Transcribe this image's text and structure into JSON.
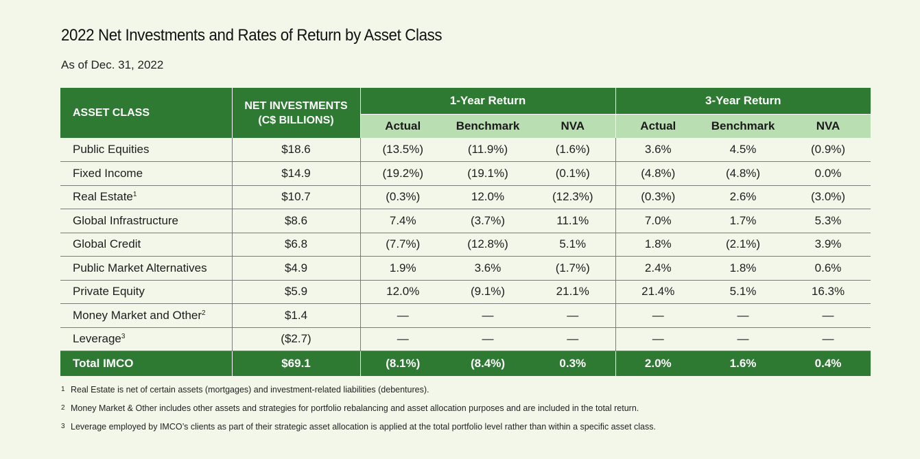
{
  "title": "2022 Net Investments and Rates of Return by Asset Class",
  "subtitle": "As of Dec. 31, 2022",
  "table": {
    "headers": {
      "asset_class": "ASSET CLASS",
      "net_investments_line1": "NET INVESTMENTS",
      "net_investments_line2": "(C$ BILLIONS)",
      "group_1yr": "1-Year Return",
      "group_3yr": "3-Year Return",
      "actual": "Actual",
      "benchmark": "Benchmark",
      "nva": "NVA"
    },
    "rows": [
      {
        "asset": "Public Equities",
        "sup": "",
        "net": "$18.6",
        "a1": "(13.5%)",
        "b1": "(11.9%)",
        "n1": "(1.6%)",
        "a3": "3.6%",
        "b3": "4.5%",
        "n3": "(0.9%)"
      },
      {
        "asset": "Fixed Income",
        "sup": "",
        "net": "$14.9",
        "a1": "(19.2%)",
        "b1": "(19.1%)",
        "n1": "(0.1%)",
        "a3": "(4.8%)",
        "b3": "(4.8%)",
        "n3": "0.0%"
      },
      {
        "asset": "Real Estate",
        "sup": "1",
        "net": "$10.7",
        "a1": "(0.3%)",
        "b1": "12.0%",
        "n1": "(12.3%)",
        "a3": "(0.3%)",
        "b3": "2.6%",
        "n3": "(3.0%)"
      },
      {
        "asset": "Global Infrastructure",
        "sup": "",
        "net": "$8.6",
        "a1": "7.4%",
        "b1": "(3.7%)",
        "n1": "11.1%",
        "a3": "7.0%",
        "b3": "1.7%",
        "n3": "5.3%"
      },
      {
        "asset": "Global Credit",
        "sup": "",
        "net": "$6.8",
        "a1": "(7.7%)",
        "b1": "(12.8%)",
        "n1": "5.1%",
        "a3": "1.8%",
        "b3": "(2.1%)",
        "n3": "3.9%"
      },
      {
        "asset": "Public Market Alternatives",
        "sup": "",
        "net": "$4.9",
        "a1": "1.9%",
        "b1": "3.6%",
        "n1": "(1.7%)",
        "a3": "2.4%",
        "b3": "1.8%",
        "n3": "0.6%"
      },
      {
        "asset": "Private Equity",
        "sup": "",
        "net": "$5.9",
        "a1": "12.0%",
        "b1": "(9.1%)",
        "n1": "21.1%",
        "a3": "21.4%",
        "b3": "5.1%",
        "n3": "16.3%"
      },
      {
        "asset": "Money Market and Other",
        "sup": "2",
        "net": "$1.4",
        "a1": "—",
        "b1": "—",
        "n1": "—",
        "a3": "—",
        "b3": "—",
        "n3": "—"
      },
      {
        "asset": "Leverage",
        "sup": "3",
        "net": "($2.7)",
        "a1": "—",
        "b1": "—",
        "n1": "—",
        "a3": "—",
        "b3": "—",
        "n3": "—"
      }
    ],
    "total": {
      "asset": "Total IMCO",
      "net": "$69.1",
      "a1": "(8.1%)",
      "b1": "(8.4%)",
      "n1": "0.3%",
      "a3": "2.0%",
      "b3": "1.6%",
      "n3": "0.4%"
    }
  },
  "footnotes": [
    {
      "num": "1",
      "text": "Real Estate is net of certain assets (mortgages) and investment-related liabilities (debentures)."
    },
    {
      "num": "2",
      "text": "Money Market & Other includes other assets and strategies for portfolio rebalancing and asset allocation purposes and are included in the total return."
    },
    {
      "num": "3",
      "text": "Leverage employed by IMCO’s clients as part of their strategic asset allocation is applied at the total portfolio level rather than within a specific asset class."
    }
  ],
  "colors": {
    "dark_green": "#2f7a33",
    "light_green": "#b8deb2",
    "background": "#f2f7ea"
  }
}
